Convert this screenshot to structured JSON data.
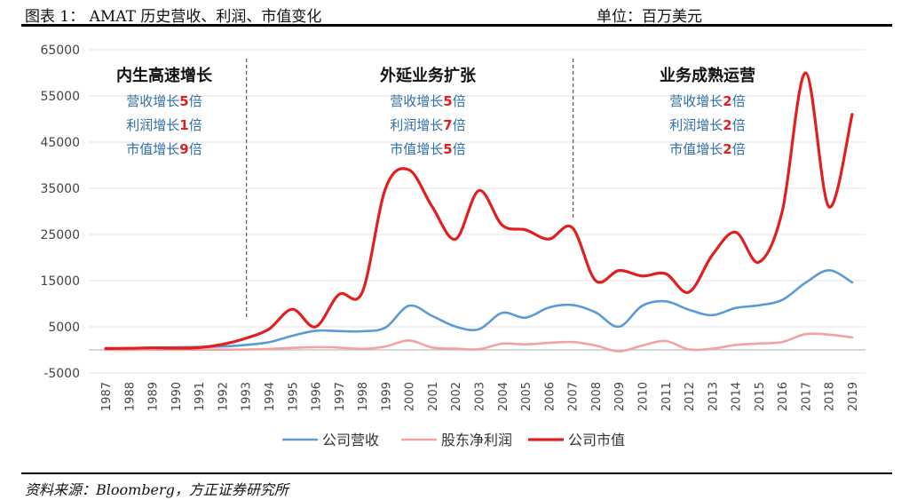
{
  "header": {
    "title": "图表 1： AMAT 历史营收、利润、市值变化",
    "unit": "单位：百万美元"
  },
  "footer": {
    "source": "资料来源：Bloomberg，方正证券研究所"
  },
  "colors": {
    "revenue": "#5B9BD5",
    "profit": "#F4A1A1",
    "marketcap": "#E02020",
    "phase_text": "#2E6FA7",
    "highlight": "#E02020"
  },
  "phases": [
    {
      "title": "内生高速增长",
      "lines": [
        {
          "prefix": "营收增长",
          "num": "5",
          "suffix": "倍"
        },
        {
          "prefix": "利润增长",
          "num": "1",
          "suffix": "倍"
        },
        {
          "prefix": "市值增长",
          "num": "9",
          "suffix": "倍"
        }
      ]
    },
    {
      "title": "外延业务扩张",
      "lines": [
        {
          "prefix": "营收增长",
          "num": "5",
          "suffix": "倍"
        },
        {
          "prefix": "利润增长",
          "num": "7",
          "suffix": "倍"
        },
        {
          "prefix": "市值增长",
          "num": "5",
          "suffix": "倍"
        }
      ]
    },
    {
      "title": "业务成熟运营",
      "lines": [
        {
          "prefix": "营收增长",
          "num": "2",
          "suffix": "倍"
        },
        {
          "prefix": "利润增长",
          "num": "2",
          "suffix": "倍"
        },
        {
          "prefix": "市值增长",
          "num": "2",
          "suffix": "倍"
        }
      ]
    }
  ],
  "chart_data": {
    "type": "line",
    "title": "AMAT 历史营收、利润、市值变化",
    "ylabel": "百万美元",
    "ylim": [
      -5000,
      65000
    ],
    "yticks": [
      -5000,
      5000,
      15000,
      25000,
      35000,
      45000,
      55000,
      65000
    ],
    "ytick_labels": [
      "-5000",
      "5000",
      "15000",
      "25000",
      "35000",
      "45000",
      "55000",
      "65000"
    ],
    "categories": [
      "1987",
      "1988",
      "1989",
      "1990",
      "1991",
      "1992",
      "1993",
      "1994",
      "1995",
      "1996",
      "1997",
      "1998",
      "1999",
      "2000",
      "2001",
      "2002",
      "2003",
      "2004",
      "2005",
      "2006",
      "2007",
      "2008",
      "2009",
      "2010",
      "2011",
      "2012",
      "2013",
      "2014",
      "2015",
      "2016",
      "2017",
      "2018",
      "2019"
    ],
    "phase_dividers": [
      "1993",
      "2007"
    ],
    "legend_position": "bottom",
    "series": [
      {
        "name": "公司营收",
        "color_key": "revenue",
        "values": [
          170,
          360,
          500,
          570,
          640,
          750,
          1080,
          1660,
          3060,
          4150,
          4070,
          4040,
          4860,
          9560,
          7340,
          5060,
          4480,
          8010,
          6990,
          9170,
          9730,
          8130,
          5010,
          9550,
          10520,
          8720,
          7510,
          9070,
          9660,
          10830,
          14540,
          17250,
          14610
        ]
      },
      {
        "name": "股东净利润",
        "color_key": "profit",
        "values": [
          0,
          20,
          50,
          70,
          60,
          60,
          100,
          220,
          450,
          600,
          500,
          230,
          750,
          2060,
          510,
          270,
          150,
          1350,
          1210,
          1520,
          1710,
          960,
          -300,
          940,
          1930,
          110,
          260,
          1070,
          1380,
          1720,
          3430,
          3310,
          2710
        ]
      },
      {
        "name": "公司市值",
        "color_key": "marketcap",
        "values": [
          300,
          350,
          450,
          380,
          500,
          1200,
          2500,
          4500,
          8800,
          5000,
          12000,
          12500,
          35000,
          39000,
          31000,
          24000,
          34500,
          27000,
          26000,
          24000,
          26500,
          15000,
          17200,
          16000,
          16500,
          12500,
          20500,
          25500,
          19000,
          30000,
          60000,
          31000,
          51000
        ]
      }
    ]
  }
}
